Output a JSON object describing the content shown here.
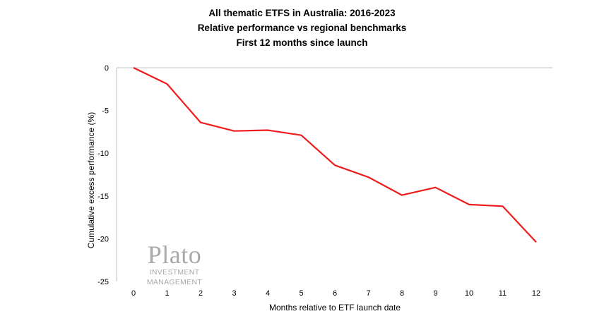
{
  "chart_data": {
    "type": "line",
    "title": [
      "All thematic ETFS in Australia: 2016-2023",
      "Relative performance vs regional benchmarks",
      "First 12 months since launch"
    ],
    "xlabel": "Months relative to ETF launch date",
    "ylabel": "Cumulative excess performance (%)",
    "x": [
      0,
      1,
      2,
      3,
      4,
      5,
      6,
      7,
      8,
      9,
      10,
      11,
      12
    ],
    "series": [
      {
        "values": [
          0,
          -1.9,
          -6.4,
          -7.4,
          -7.3,
          -7.9,
          -11.4,
          -12.8,
          -14.9,
          -14.0,
          -16.0,
          -16.2,
          -20.4
        ]
      }
    ],
    "ylim": [
      -25,
      0
    ],
    "yticks": [
      0,
      -5,
      -10,
      -15,
      -20,
      -25
    ],
    "xticks": [
      0,
      1,
      2,
      3,
      4,
      5,
      6,
      7,
      8,
      9,
      10,
      11,
      12
    ],
    "grid": false,
    "legend": "none",
    "line_color": "#ee1c1c",
    "axis_color": "#bfbfbf"
  },
  "watermark": {
    "logo": "Plato",
    "subtitle": "INVESTMENT MANAGEMENT"
  }
}
